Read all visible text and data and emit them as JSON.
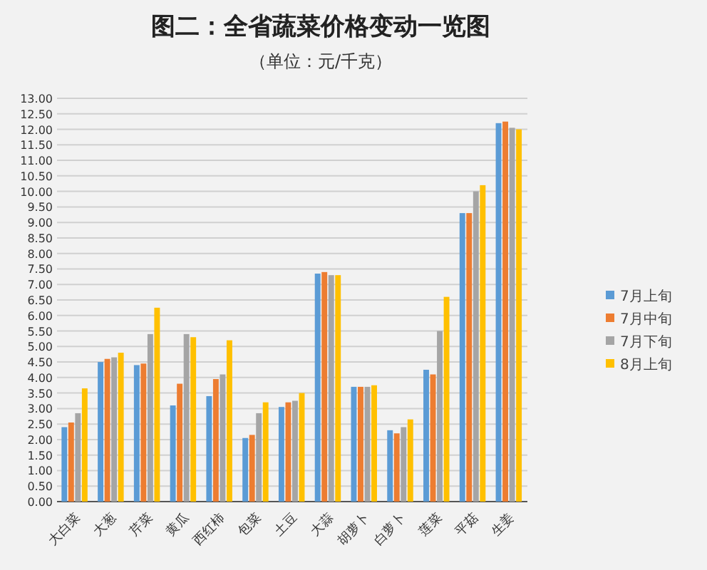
{
  "chart_data": {
    "type": "bar",
    "title": "图二：全省蔬菜价格变动一览图",
    "subtitle": "（单位：元/千克）",
    "categories": [
      "大白菜",
      "大葱",
      "芹菜",
      "黄瓜",
      "西红柿",
      "包菜",
      "土豆",
      "大蒜",
      "胡萝卜",
      "白萝卜",
      "莲菜",
      "平菇",
      "生姜"
    ],
    "series": [
      {
        "name": "7月上旬",
        "color": "#5b9bd5",
        "values": [
          2.4,
          4.5,
          4.4,
          3.1,
          3.4,
          2.05,
          3.05,
          7.35,
          3.7,
          2.3,
          4.25,
          9.3,
          12.2
        ]
      },
      {
        "name": "7月中旬",
        "color": "#ed7d31",
        "values": [
          2.55,
          4.6,
          4.45,
          3.8,
          3.95,
          2.15,
          3.2,
          7.4,
          3.7,
          2.2,
          4.1,
          9.3,
          12.25
        ]
      },
      {
        "name": "7月下旬",
        "color": "#a5a5a5",
        "values": [
          2.85,
          4.65,
          5.4,
          5.4,
          4.1,
          2.85,
          3.25,
          7.3,
          3.7,
          2.4,
          5.5,
          10.0,
          12.05
        ]
      },
      {
        "name": "8月上旬",
        "color": "#ffc000",
        "values": [
          3.65,
          4.8,
          6.25,
          5.3,
          5.2,
          3.2,
          3.5,
          7.3,
          3.75,
          2.65,
          6.6,
          10.2,
          12.0
        ]
      }
    ],
    "ylim": [
      0,
      13
    ],
    "yticks": [
      {
        "value": 0,
        "label": "0.00"
      },
      {
        "value": 0.5,
        "label": "0.50"
      },
      {
        "value": 1,
        "label": "1.00"
      },
      {
        "value": 1.5,
        "label": "1.50"
      },
      {
        "value": 2,
        "label": "2.00"
      },
      {
        "value": 2.5,
        "label": "2.50"
      },
      {
        "value": 3,
        "label": "3.00"
      },
      {
        "value": 3.5,
        "label": "3.50"
      },
      {
        "value": 4,
        "label": "4.00"
      },
      {
        "value": 4.5,
        "label": "4.50"
      },
      {
        "value": 5,
        "label": "5.00"
      },
      {
        "value": 5.5,
        "label": "5.50"
      },
      {
        "value": 6,
        "label": "6.00"
      },
      {
        "value": 6.5,
        "label": "6.50"
      },
      {
        "value": 7,
        "label": "7.00"
      },
      {
        "value": 7.5,
        "label": "7.50"
      },
      {
        "value": 8,
        "label": "8.00"
      },
      {
        "value": 8.5,
        "label": "8.50"
      },
      {
        "value": 9,
        "label": "9.00"
      },
      {
        "value": 9.5,
        "label": "9.50"
      },
      {
        "value": 10,
        "label": "10.00"
      },
      {
        "value": 10.5,
        "label": "10.50"
      },
      {
        "value": 11,
        "label": "11.00"
      },
      {
        "value": 11.5,
        "label": "11.50"
      },
      {
        "value": 12,
        "label": "12.00"
      },
      {
        "value": 12.5,
        "label": "12.50"
      },
      {
        "value": 13,
        "label": "13.00"
      }
    ],
    "grid": "y",
    "legend": "right"
  }
}
